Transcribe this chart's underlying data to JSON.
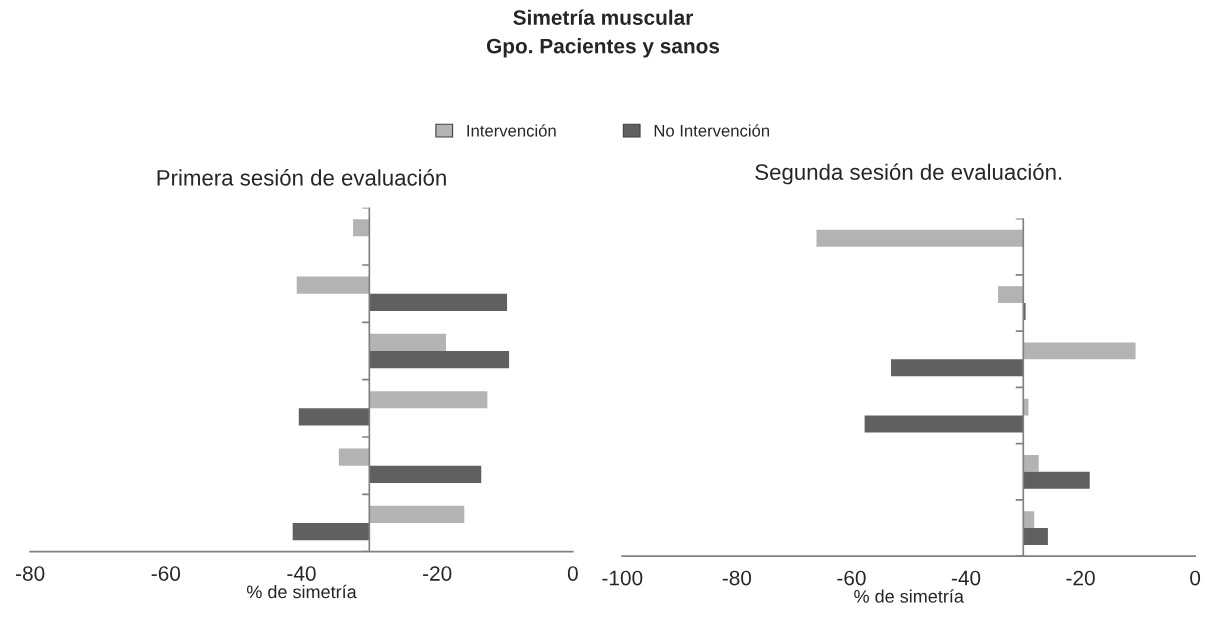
{
  "chart_data": [
    {
      "type": "bar",
      "orientation": "horizontal",
      "title": "Simetría muscular\nGpo. Pacientes y sanos",
      "subtitle": "Primera sesión de evaluación",
      "xlabel": "% de simetría",
      "categories": [
        null,
        null,
        null,
        null,
        null,
        null
      ],
      "legend": "top",
      "xlim": [
        -80,
        0
      ],
      "xticks": [
        -80,
        -60,
        -40,
        -20,
        0
      ],
      "grid": false,
      "ref_lines": [
        {
          "axis": "x",
          "value": -30,
          "color": "#808080"
        }
      ],
      "series": [
        {
          "name": "Intervención",
          "color": "#b3b3b3",
          "base": [
            -30,
            -30,
            -30,
            -30,
            -30,
            -30
          ],
          "values": [
            -2.4,
            -10.7,
            11.3,
            17.4,
            -4.5,
            14.0
          ]
        },
        {
          "name": "No Intervención",
          "color": "#606060",
          "base": [
            null,
            -30,
            -30,
            -30,
            -30,
            -30
          ],
          "values": [
            null,
            20.3,
            20.6,
            -10.4,
            16.5,
            -11.3
          ]
        }
      ]
    },
    {
      "type": "bar",
      "orientation": "horizontal",
      "title": "Segunda sesión de evaluación.",
      "xlabel": "% de simetría",
      "categories": [
        null,
        null,
        null,
        null,
        null,
        null
      ],
      "xlim": [
        -100,
        0
      ],
      "xticks": [
        -100,
        -80,
        -60,
        -40,
        -20,
        0
      ],
      "grid": false,
      "ref_lines": [
        {
          "axis": "x",
          "value": -30,
          "color": "#808080"
        }
      ],
      "series": [
        {
          "color": "#b3b3b3",
          "base": [
            -30,
            -30,
            -30,
            -30,
            -30,
            -30
          ],
          "values": [
            -36.1,
            -4.4,
            19.6,
            0.9,
            2.7,
            1.9
          ]
        },
        {
          "color": "#606060",
          "base": [
            null,
            -30,
            -30,
            -30,
            -30,
            -30
          ],
          "values": [
            null,
            0.4,
            -23.1,
            -27.7,
            11.6,
            4.3
          ]
        }
      ]
    }
  ]
}
